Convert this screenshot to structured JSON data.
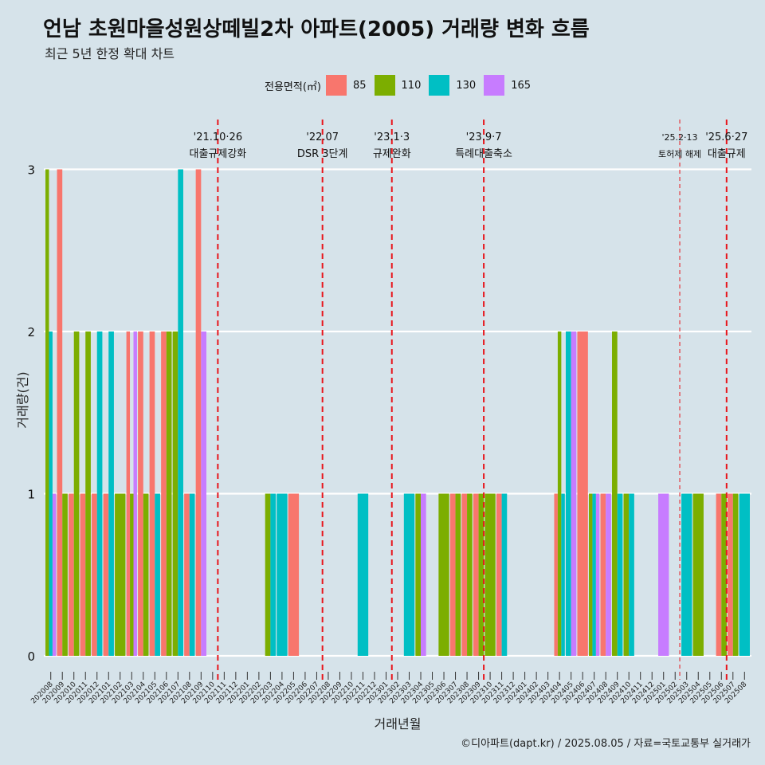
{
  "title": "언남 초원마을성원상떼빌2차 아파트(2005) 거래량 변화 흐름",
  "subtitle": "최근 5년 한정 확대 차트",
  "caption": "©디아파트(dapt.kr) / 2025.08.05 / 자료=국토교통부 실거래가",
  "colors": {
    "background": "#d6e3ea",
    "grid": "#ffffff",
    "vline": "#e8151b"
  },
  "legend": {
    "title": "전용면적(㎡)",
    "items": [
      {
        "label": "85",
        "color": "#f8766d"
      },
      {
        "label": "110",
        "color": "#7cae00"
      },
      {
        "label": "130",
        "color": "#00bfc4"
      },
      {
        "label": "165",
        "color": "#c77cff"
      }
    ]
  },
  "chart_data": {
    "type": "bar",
    "xlabel": "거래년월",
    "ylabel": "거래량(건)",
    "ylim": [
      0,
      3
    ],
    "yticks": [
      0,
      1,
      2,
      3
    ],
    "grid": true,
    "legend_position": "top",
    "categories": [
      "202008",
      "202009",
      "202010",
      "202011",
      "202012",
      "202101",
      "202102",
      "202103",
      "202104",
      "202105",
      "202106",
      "202107",
      "202108",
      "202109",
      "202110",
      "202111",
      "202112",
      "202201",
      "202202",
      "202203",
      "202204",
      "202205",
      "202206",
      "202207",
      "202208",
      "202209",
      "202210",
      "202211",
      "202212",
      "202301",
      "202302",
      "202303",
      "202304",
      "202305",
      "202306",
      "202307",
      "202308",
      "202309",
      "202310",
      "202311",
      "202312",
      "202401",
      "202402",
      "202403",
      "202404",
      "202405",
      "202406",
      "202407",
      "202408",
      "202409",
      "202410",
      "202411",
      "202412",
      "202501",
      "202502",
      "202503",
      "202504",
      "202505",
      "202506",
      "202507",
      "202508"
    ],
    "bars": [
      {
        "month": "202008",
        "values": {
          "110": 3,
          "130": 2,
          "165": 1
        }
      },
      {
        "month": "202009",
        "values": {
          "85": 3,
          "110": 1
        }
      },
      {
        "month": "202010",
        "values": {
          "85": 1,
          "110": 2
        }
      },
      {
        "month": "202011",
        "values": {
          "85": 1,
          "110": 2
        }
      },
      {
        "month": "202012",
        "values": {
          "85": 1,
          "130": 2
        }
      },
      {
        "month": "202101",
        "values": {
          "85": 1,
          "130": 2
        }
      },
      {
        "month": "202102",
        "values": {
          "110": 1
        }
      },
      {
        "month": "202103",
        "values": {
          "85": 2,
          "110": 1,
          "165": 2
        }
      },
      {
        "month": "202104",
        "values": {
          "85": 2,
          "110": 1
        }
      },
      {
        "month": "202105",
        "values": {
          "85": 2,
          "130": 1
        }
      },
      {
        "month": "202106",
        "values": {
          "85": 2,
          "110": 2
        }
      },
      {
        "month": "202107",
        "values": {
          "110": 2,
          "130": 3
        }
      },
      {
        "month": "202108",
        "values": {
          "85": 1,
          "130": 1
        }
      },
      {
        "month": "202109",
        "values": {
          "85": 3,
          "165": 2
        }
      },
      {
        "month": "202203",
        "values": {
          "110": 1,
          "130": 1
        }
      },
      {
        "month": "202204",
        "values": {
          "130": 1
        }
      },
      {
        "month": "202205",
        "values": {
          "85": 1
        }
      },
      {
        "month": "202211",
        "values": {
          "130": 1
        }
      },
      {
        "month": "202303",
        "values": {
          "130": 1
        }
      },
      {
        "month": "202304",
        "values": {
          "110": 1,
          "165": 1
        }
      },
      {
        "month": "202306",
        "values": {
          "110": 1
        }
      },
      {
        "month": "202307",
        "values": {
          "85": 1,
          "110": 1
        }
      },
      {
        "month": "202308",
        "values": {
          "85": 1,
          "110": 1
        }
      },
      {
        "month": "202309",
        "values": {
          "85": 1,
          "110": 1
        }
      },
      {
        "month": "202310",
        "values": {
          "110": 1
        }
      },
      {
        "month": "202311",
        "values": {
          "85": 1,
          "130": 1
        }
      },
      {
        "month": "202404",
        "values": {
          "85": 1,
          "110": 2,
          "130": 1
        }
      },
      {
        "month": "202405",
        "values": {
          "130": 2,
          "165": 2
        }
      },
      {
        "month": "202406",
        "values": {
          "85": 2
        }
      },
      {
        "month": "202407",
        "values": {
          "110": 1,
          "130": 1,
          "165": 1
        }
      },
      {
        "month": "202408",
        "values": {
          "85": 1,
          "165": 1
        }
      },
      {
        "month": "202409",
        "values": {
          "110": 2,
          "130": 1
        }
      },
      {
        "month": "202410",
        "values": {
          "110": 1,
          "130": 1
        }
      },
      {
        "month": "202501",
        "values": {
          "165": 1
        }
      },
      {
        "month": "202503",
        "values": {
          "130": 1
        }
      },
      {
        "month": "202504",
        "values": {
          "110": 1
        }
      },
      {
        "month": "202506",
        "values": {
          "85": 1,
          "110": 1
        }
      },
      {
        "month": "202507",
        "values": {
          "85": 1,
          "110": 1
        }
      },
      {
        "month": "202508",
        "values": {
          "130": 1
        }
      }
    ],
    "events": [
      {
        "date": "'21.10·26",
        "label": "대출규제강화",
        "pos": 14.45,
        "dash": "heavy"
      },
      {
        "date": "'22.07",
        "label": "DSR 3단계",
        "pos": 23.5,
        "dash": "heavy"
      },
      {
        "date": "'23.1·3",
        "label": "규제완화",
        "pos": 29.5,
        "dash": "heavy"
      },
      {
        "date": "'23.9·7",
        "label": "특례대출축소",
        "pos": 37.45,
        "dash": "heavy"
      },
      {
        "date": "'25.2·13",
        "label": "토허제 해제",
        "pos": 54.4,
        "dash": "light",
        "small": true
      },
      {
        "date": "'25.6·27",
        "label": "대출규제",
        "pos": 58.45,
        "dash": "heavy"
      }
    ]
  }
}
